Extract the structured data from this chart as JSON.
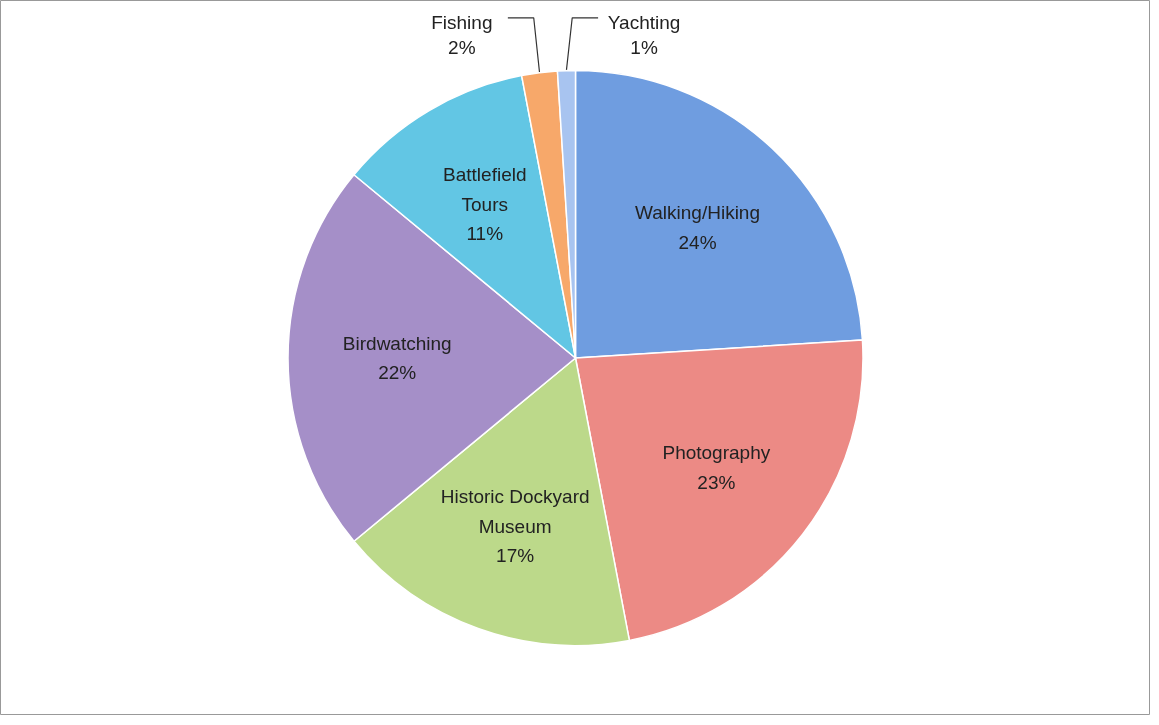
{
  "chart_data": {
    "type": "pie",
    "categories": [
      "Walking/Hiking",
      "Photography",
      "Historic Dockyard Museum",
      "Birdwatching",
      "Battlefield Tours",
      "Fishing",
      "Yachting"
    ],
    "values": [
      24,
      23,
      17,
      22,
      11,
      2,
      1
    ],
    "value_labels": [
      "24%",
      "23%",
      "17%",
      "22%",
      "11%",
      "2%",
      "1%"
    ],
    "colors": [
      "#6f9de0",
      "#ec8a85",
      "#bcd98a",
      "#a58fc8",
      "#62c6e4",
      "#f7a86a",
      "#a8c4f0"
    ]
  }
}
